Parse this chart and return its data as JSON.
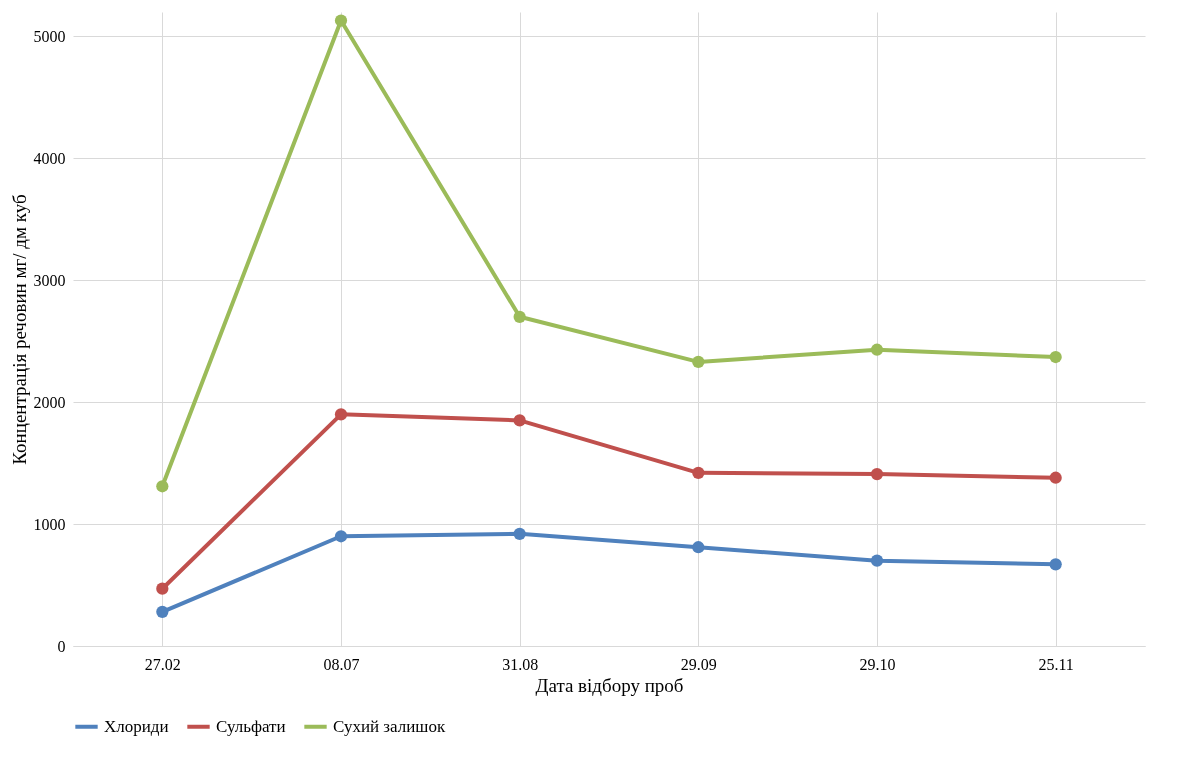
{
  "chart_data": {
    "type": "line",
    "xlabel": "Дата відбору проб",
    "ylabel": "Концентрація речовин мг/ дм куб",
    "categories": [
      "27.02",
      "08.07",
      "31.08",
      "29.09",
      "29.10",
      "25.11"
    ],
    "series": [
      {
        "name": "Хлориди",
        "color": "#4f81bd",
        "values": [
          280,
          900,
          920,
          810,
          700,
          670
        ]
      },
      {
        "name": "Сульфати",
        "color": "#c0504d",
        "values": [
          470,
          1900,
          1850,
          1420,
          1410,
          1380
        ]
      },
      {
        "name": "Сухий залишок",
        "color": "#9bbb59",
        "values": [
          1310,
          5130,
          2700,
          2330,
          2430,
          2370
        ]
      }
    ],
    "ylim": [
      0,
      5200
    ],
    "yticks": [
      0,
      1000,
      2000,
      3000,
      4000,
      5000
    ],
    "grid": true,
    "legend": "bottom",
    "marker": "circle",
    "line_style": "solid"
  }
}
